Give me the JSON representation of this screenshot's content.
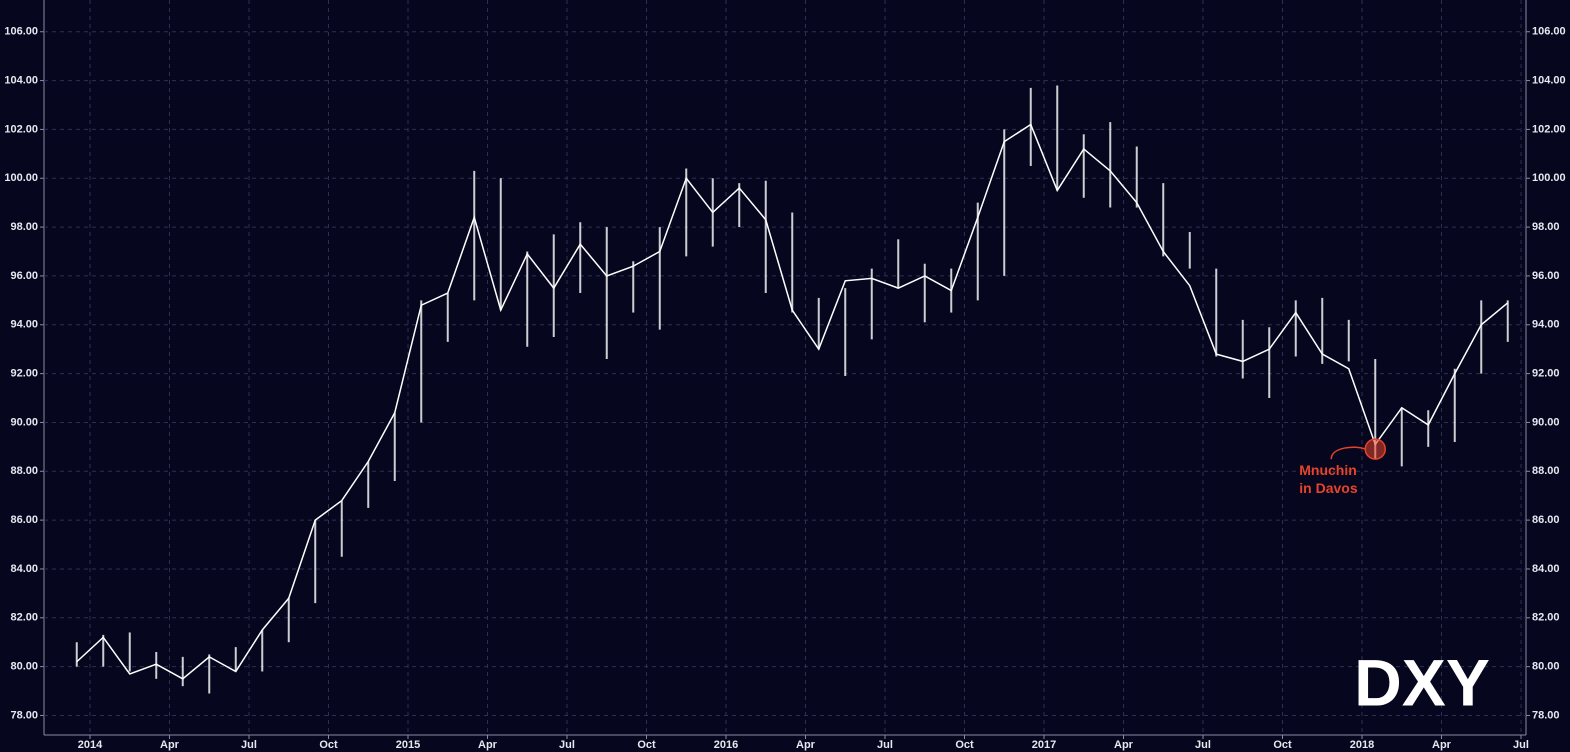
{
  "chart_data": {
    "type": "range",
    "watermark": "DXY",
    "annotation_lines": [
      "Mnuchin",
      "in Davos"
    ],
    "annotation_color": "#e8432a",
    "color": "#ffffff",
    "grid": true,
    "categories": [
      null,
      "2014",
      null,
      null,
      "Apr",
      null,
      null,
      "Jul",
      null,
      null,
      "Oct",
      null,
      null,
      "2015",
      null,
      null,
      "Apr",
      null,
      null,
      "Jul",
      null,
      null,
      "Oct",
      null,
      null,
      "2016",
      null,
      null,
      "Apr",
      null,
      null,
      "Jul",
      null,
      null,
      "Oct",
      null,
      null,
      "2017",
      null,
      null,
      "Apr",
      null,
      null,
      "Jul",
      null,
      null,
      "Oct",
      null,
      null,
      "2018",
      null,
      null,
      "Apr",
      null,
      null,
      "Jul"
    ],
    "low": [
      80.0,
      80.0,
      79.8,
      79.5,
      79.2,
      78.9,
      79.8,
      79.8,
      81.0,
      82.6,
      84.5,
      86.5,
      87.6,
      90.0,
      93.3,
      95.0,
      94.6,
      93.1,
      93.5,
      95.3,
      92.6,
      94.5,
      93.8,
      96.8,
      97.2,
      98.0,
      95.3,
      94.5,
      93.0,
      91.9,
      93.4,
      95.5,
      94.1,
      94.5,
      95.0,
      96.0,
      100.5,
      99.5,
      99.2,
      98.8,
      98.8,
      96.8,
      96.3,
      92.7,
      91.8,
      91.0,
      92.7,
      92.4,
      92.5,
      88.5,
      88.2,
      89.0,
      89.2,
      92.0,
      93.3,
      null
    ],
    "high": [
      81.0,
      81.3,
      81.4,
      80.6,
      80.4,
      80.5,
      80.8,
      81.5,
      82.8,
      86.0,
      86.8,
      88.4,
      90.4,
      95.0,
      95.3,
      100.3,
      100.0,
      97.0,
      97.7,
      98.2,
      98.0,
      96.6,
      98.0,
      100.4,
      100.0,
      99.8,
      99.9,
      98.6,
      95.1,
      95.5,
      96.3,
      97.5,
      96.5,
      96.3,
      99.0,
      102.0,
      103.7,
      103.8,
      101.8,
      102.3,
      101.3,
      99.8,
      97.8,
      96.3,
      94.2,
      93.9,
      95.0,
      95.1,
      94.2,
      92.6,
      90.6,
      90.5,
      92.2,
      95.0,
      95.0,
      null
    ],
    "close": [
      80.2,
      81.2,
      79.7,
      80.1,
      79.5,
      80.4,
      79.8,
      81.5,
      82.8,
      86.0,
      86.8,
      88.4,
      90.4,
      94.8,
      95.3,
      98.4,
      94.6,
      96.9,
      95.5,
      97.3,
      96.0,
      96.4,
      97.0,
      100.0,
      98.6,
      99.6,
      98.3,
      94.6,
      93.0,
      95.8,
      95.9,
      95.5,
      96.0,
      95.4,
      98.4,
      101.5,
      102.2,
      99.5,
      101.2,
      100.3,
      99.0,
      97.0,
      95.6,
      92.8,
      92.5,
      93.0,
      94.5,
      92.8,
      92.2,
      89.1,
      90.6,
      89.9,
      92.0,
      94.0,
      94.9,
      null
    ],
    "ylim": [
      77.2,
      107.3
    ],
    "yticks": [
      {
        "value": 78,
        "label": "78.00"
      },
      {
        "value": 80,
        "label": "80.00"
      },
      {
        "value": 82,
        "label": "82.00"
      },
      {
        "value": 84,
        "label": "84.00"
      },
      {
        "value": 86,
        "label": "86.00"
      },
      {
        "value": 88,
        "label": "88.00"
      },
      {
        "value": 90,
        "label": "90.00"
      },
      {
        "value": 92,
        "label": "92.00"
      },
      {
        "value": 94,
        "label": "94.00"
      },
      {
        "value": 96,
        "label": "96.00"
      },
      {
        "value": 98,
        "label": "98.00"
      },
      {
        "value": 100,
        "label": "100.00"
      },
      {
        "value": 102,
        "label": "102.00"
      },
      {
        "value": 104,
        "label": "104.00"
      },
      {
        "value": 106,
        "label": "106.00"
      }
    ]
  }
}
